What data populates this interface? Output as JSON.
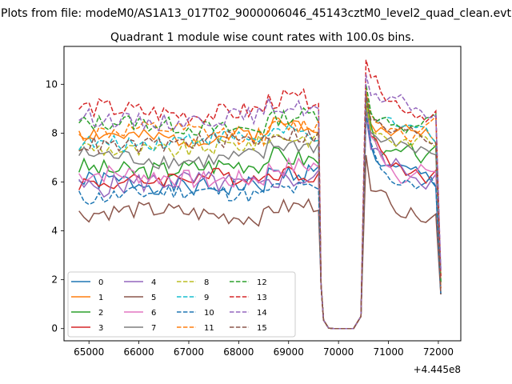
{
  "figure": {
    "suptitle": "Plots from file: modeM0/AS1A13_017T02_9000006046_45143cztM0_level2_quad_clean.evt"
  },
  "chart_data": {
    "type": "line",
    "title": "Quadrant 1 module wise count rates with 100.0s bins.",
    "xlabel": "",
    "ylabel": "",
    "x_offset_label": "+4.445e8",
    "xlim": [
      64500,
      72450
    ],
    "ylim": [
      -0.5,
      11.55
    ],
    "x_ticks": [
      65000,
      66000,
      67000,
      68000,
      69000,
      70000,
      71000,
      72000
    ],
    "y_ticks": [
      0,
      2,
      4,
      6,
      8,
      10
    ],
    "grid": false,
    "legend_position": "lower-left",
    "series": [
      {
        "name": "0",
        "color": "#1f77b4",
        "dash": "solid",
        "base": 5.9,
        "amp": 0.4,
        "peak": 9.0,
        "endv": 5.5,
        "seed": 1
      },
      {
        "name": "1",
        "color": "#ff7f0e",
        "dash": "solid",
        "base": 7.9,
        "amp": 0.35,
        "peak": 9.7,
        "endv": 7.6,
        "seed": 2
      },
      {
        "name": "2",
        "color": "#2ca02c",
        "dash": "solid",
        "base": 6.6,
        "amp": 0.4,
        "peak": 9.4,
        "endv": 6.3,
        "seed": 3
      },
      {
        "name": "3",
        "color": "#d62728",
        "dash": "solid",
        "base": 6.1,
        "amp": 0.35,
        "peak": 9.2,
        "endv": 5.9,
        "seed": 4
      },
      {
        "name": "4",
        "color": "#9467bd",
        "dash": "solid",
        "base": 5.9,
        "amp": 0.45,
        "peak": 8.7,
        "endv": 6.0,
        "seed": 5
      },
      {
        "name": "5",
        "color": "#8c564b",
        "dash": "solid",
        "base": 4.7,
        "amp": 0.35,
        "peak": 7.1,
        "endv": 4.5,
        "seed": 6
      },
      {
        "name": "6",
        "color": "#e377c2",
        "dash": "solid",
        "base": 6.2,
        "amp": 0.4,
        "peak": 8.9,
        "endv": 6.0,
        "seed": 7
      },
      {
        "name": "7",
        "color": "#7f7f7f",
        "dash": "solid",
        "base": 7.0,
        "amp": 0.35,
        "peak": 9.1,
        "endv": 6.8,
        "seed": 8
      },
      {
        "name": "8",
        "color": "#bcbd22",
        "dash": "dashed",
        "base": 7.4,
        "amp": 0.35,
        "peak": 9.3,
        "endv": 7.2,
        "seed": 9
      },
      {
        "name": "9",
        "color": "#17becf",
        "dash": "dashed",
        "base": 7.7,
        "amp": 0.35,
        "peak": 9.5,
        "endv": 7.4,
        "seed": 10
      },
      {
        "name": "10",
        "color": "#1f77b4",
        "dash": "dashed",
        "base": 5.5,
        "amp": 0.35,
        "peak": 8.8,
        "endv": 5.4,
        "seed": 11
      },
      {
        "name": "11",
        "color": "#ff7f0e",
        "dash": "dashed",
        "base": 8.0,
        "amp": 0.35,
        "peak": 9.8,
        "endv": 7.8,
        "seed": 12
      },
      {
        "name": "12",
        "color": "#2ca02c",
        "dash": "dashed",
        "base": 8.3,
        "amp": 0.35,
        "peak": 10.0,
        "endv": 8.0,
        "seed": 13
      },
      {
        "name": "13",
        "color": "#d62728",
        "dash": "dashed",
        "base": 8.9,
        "amp": 0.4,
        "peak": 11.0,
        "endv": 8.7,
        "seed": 14
      },
      {
        "name": "14",
        "color": "#9467bd",
        "dash": "dashed",
        "base": 8.6,
        "amp": 0.35,
        "peak": 10.4,
        "endv": 8.4,
        "seed": 15
      },
      {
        "name": "15",
        "color": "#8c564b",
        "dash": "dashed",
        "base": 7.6,
        "amp": 0.35,
        "peak": 9.6,
        "endv": 7.4,
        "seed": 16
      }
    ]
  }
}
